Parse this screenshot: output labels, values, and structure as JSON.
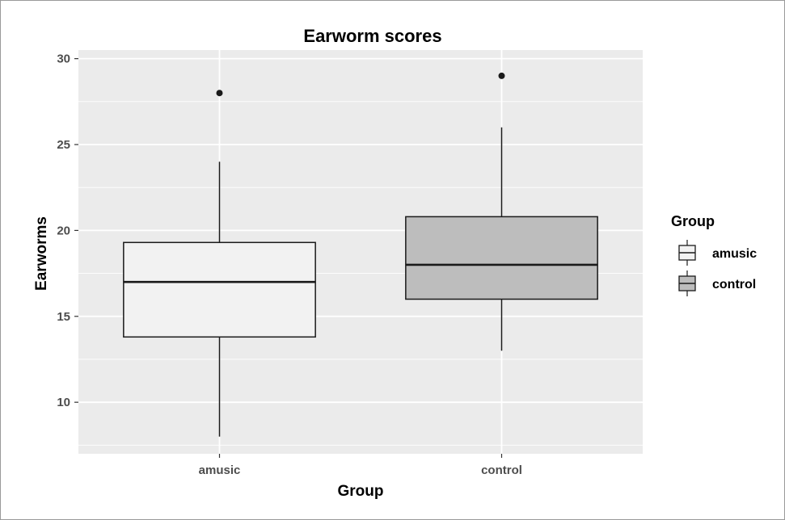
{
  "chart_data": {
    "type": "box",
    "title": "Earworm scores",
    "xlabel": "Group",
    "ylabel": "Earworms",
    "categories": [
      "amusic",
      "control"
    ],
    "ylim": [
      7,
      30.5
    ],
    "yticks": [
      10,
      15,
      20,
      25,
      30
    ],
    "grid": true,
    "boxes": [
      {
        "name": "amusic",
        "whisker_low": 8,
        "q1": 13.8,
        "median": 17,
        "q3": 19.3,
        "whisker_high": 24,
        "outliers": [
          28
        ],
        "fill": "#f2f2f2"
      },
      {
        "name": "control",
        "whisker_low": 13,
        "q1": 16,
        "median": 18,
        "q3": 20.8,
        "whisker_high": 26,
        "outliers": [
          29
        ],
        "fill": "#bdbdbd"
      }
    ],
    "legend": {
      "title": "Group",
      "position": "right",
      "entries": [
        {
          "label": "amusic",
          "fill": "#f2f2f2"
        },
        {
          "label": "control",
          "fill": "#bdbdbd"
        }
      ]
    },
    "colors": {
      "panel": "#ebebeb",
      "grid": "#ffffff",
      "line": "#1a1a1a"
    }
  }
}
